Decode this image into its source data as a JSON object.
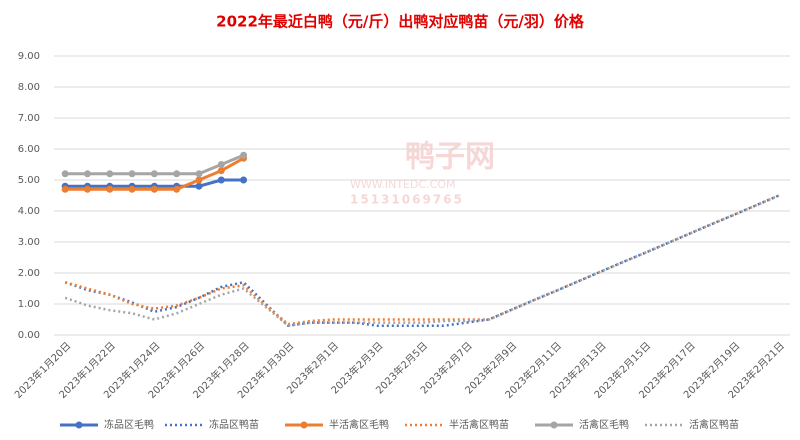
{
  "chart_data": {
    "type": "line",
    "title": "2022年最近白鸭（元/斤）出鸭对应鸭苗（元/羽）价格",
    "watermark": {
      "name": "鸭子网",
      "site": "WWW.INTEDC.COM",
      "phone": "15131069765"
    },
    "categories": [
      "2023年1月20日",
      null,
      "2023年1月22日",
      null,
      "2023年1月24日",
      null,
      "2023年1月26日",
      null,
      "2023年1月28日",
      null,
      "2023年1月30日",
      null,
      "2023年2月1日",
      null,
      "2023年2月3日",
      null,
      "2023年2月5日",
      null,
      "2023年2月7日",
      null,
      "2023年2月9日",
      null,
      "2023年2月11日",
      null,
      "2023年2月13日",
      null,
      "2023年2月15日",
      null,
      "2023年2月17日",
      null,
      "2023年2月19日",
      null,
      "2023年2月21日"
    ],
    "ylim": [
      0,
      9
    ],
    "yticks": [
      {
        "value": 0,
        "label": "0.00"
      },
      {
        "value": 1,
        "label": "1.00"
      },
      {
        "value": 2,
        "label": "2.00"
      },
      {
        "value": 3,
        "label": "3.00"
      },
      {
        "value": 4,
        "label": "4.00"
      },
      {
        "value": 5,
        "label": "5.00"
      },
      {
        "value": 6,
        "label": "6.00"
      },
      {
        "value": 7,
        "label": "7.00"
      },
      {
        "value": 8,
        "label": "8.00"
      },
      {
        "value": 9,
        "label": "9.00"
      }
    ],
    "grid": true,
    "legend": "bottom",
    "series": [
      {
        "name": "冻品区毛鸭",
        "color": "#4472c4",
        "dash": "solid",
        "markers": true,
        "values": [
          4.8,
          4.8,
          4.8,
          4.8,
          4.8,
          4.8,
          4.8,
          5.0,
          5.0,
          null,
          null,
          null,
          null,
          null,
          null,
          null,
          null,
          null,
          null,
          null,
          null,
          null,
          null,
          null,
          null,
          null,
          null,
          null,
          null,
          null,
          null,
          null,
          null
        ]
      },
      {
        "name": "冻品区鸭苗",
        "color": "#4472c4",
        "dash": "dotted",
        "markers": false,
        "values": [
          1.7,
          1.45,
          1.3,
          1.05,
          0.75,
          0.9,
          1.2,
          1.55,
          1.7,
          1.0,
          0.3,
          0.4,
          0.4,
          0.4,
          0.3,
          0.3,
          0.3,
          0.3,
          0.4,
          0.5,
          0.81,
          1.12,
          1.42,
          1.73,
          2.04,
          2.35,
          2.65,
          2.96,
          3.27,
          3.58,
          3.88,
          4.19,
          4.5
        ]
      },
      {
        "name": "半活禽区毛鸭",
        "color": "#ed7d31",
        "dash": "solid",
        "markers": true,
        "values": [
          4.7,
          4.7,
          4.7,
          4.7,
          4.7,
          4.7,
          5.0,
          5.3,
          5.7,
          null,
          null,
          null,
          null,
          null,
          null,
          null,
          null,
          null,
          null,
          null,
          null,
          null,
          null,
          null,
          null,
          null,
          null,
          null,
          null,
          null,
          null,
          null,
          null
        ]
      },
      {
        "name": "半活禽区鸭苗",
        "color": "#ed7d31",
        "dash": "dotted",
        "markers": false,
        "values": [
          1.7,
          1.5,
          1.3,
          1.0,
          0.85,
          0.95,
          1.2,
          1.5,
          1.6,
          0.95,
          0.35,
          0.45,
          0.5,
          0.5,
          0.5,
          0.5,
          0.5,
          0.5,
          0.5,
          0.5,
          0.81,
          1.12,
          1.42,
          1.73,
          2.04,
          2.35,
          2.65,
          2.96,
          3.27,
          3.58,
          3.88,
          4.19,
          4.5
        ]
      },
      {
        "name": "活禽区毛鸭",
        "color": "#a5a5a5",
        "dash": "solid",
        "markers": true,
        "values": [
          5.2,
          5.2,
          5.2,
          5.2,
          5.2,
          5.2,
          5.2,
          5.5,
          5.8,
          null,
          null,
          null,
          null,
          null,
          null,
          null,
          null,
          null,
          null,
          null,
          null,
          null,
          null,
          null,
          null,
          null,
          null,
          null,
          null,
          null,
          null,
          null,
          null
        ]
      },
      {
        "name": "活禽区鸭苗",
        "color": "#a5a5a5",
        "dash": "dotted",
        "markers": false,
        "values": [
          1.2,
          0.95,
          0.8,
          0.7,
          0.5,
          0.7,
          1.0,
          1.3,
          1.5,
          0.9,
          0.3,
          0.4,
          0.4,
          0.4,
          0.4,
          0.4,
          0.4,
          0.45,
          0.45,
          0.5,
          0.81,
          1.12,
          1.42,
          1.73,
          2.04,
          2.35,
          2.65,
          2.96,
          3.27,
          3.58,
          3.88,
          4.19,
          4.5
        ]
      }
    ]
  }
}
